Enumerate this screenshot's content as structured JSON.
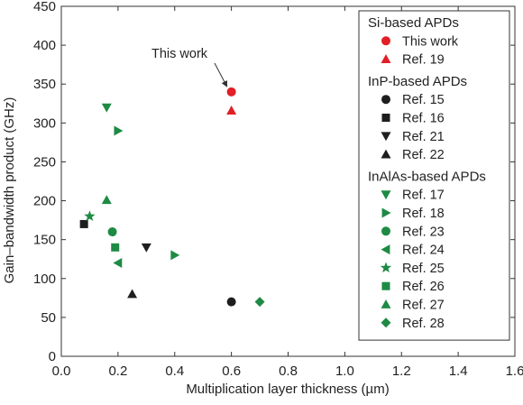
{
  "chart_data": {
    "type": "scatter",
    "xlabel": "Multiplication layer thickness (µm)",
    "ylabel": "Gain–bandwidth product (GHz)",
    "xlim": [
      0.0,
      1.6
    ],
    "ylim": [
      0,
      450
    ],
    "x_ticks": [
      "0.0",
      "0.2",
      "0.4",
      "0.6",
      "0.8",
      "1.0",
      "1.2",
      "1.4",
      "1.6"
    ],
    "y_ticks": [
      "0",
      "50",
      "100",
      "150",
      "200",
      "250",
      "300",
      "350",
      "400",
      "450"
    ],
    "grid": false,
    "legend_position": "top-right",
    "annotation": {
      "text": "This work",
      "x": 0.6,
      "y": 340
    },
    "groups": [
      {
        "title": "Si-based APDs",
        "color": "#e21f26",
        "series": [
          {
            "name": "This work",
            "marker": "circle",
            "points": [
              [
                0.6,
                340
              ]
            ]
          },
          {
            "name": "Ref. 19",
            "marker": "triangle-up",
            "points": [
              [
                0.6,
                316
              ]
            ]
          }
        ]
      },
      {
        "title": "InP-based APDs",
        "color": "#1e1e1e",
        "series": [
          {
            "name": "Ref. 15",
            "marker": "circle",
            "points": [
              [
                0.6,
                70
              ]
            ]
          },
          {
            "name": "Ref. 16",
            "marker": "square",
            "points": [
              [
                0.08,
                170
              ]
            ]
          },
          {
            "name": "Ref. 21",
            "marker": "triangle-down",
            "points": [
              [
                0.3,
                140
              ]
            ]
          },
          {
            "name": "Ref. 22",
            "marker": "triangle-up",
            "points": [
              [
                0.25,
                80
              ]
            ]
          }
        ]
      },
      {
        "title": "InAlAs-based APDs",
        "color": "#1e8a44",
        "series": [
          {
            "name": "Ref. 17",
            "marker": "triangle-down",
            "points": [
              [
                0.16,
                320
              ]
            ]
          },
          {
            "name": "Ref. 18",
            "marker": "triangle-right",
            "points": [
              [
                0.2,
                290
              ],
              [
                0.4,
                130
              ]
            ]
          },
          {
            "name": "Ref. 23",
            "marker": "circle",
            "points": [
              [
                0.18,
                160
              ]
            ]
          },
          {
            "name": "Ref. 24",
            "marker": "triangle-left",
            "points": [
              [
                0.2,
                120
              ]
            ]
          },
          {
            "name": "Ref. 25",
            "marker": "star",
            "points": [
              [
                0.1,
                180
              ]
            ]
          },
          {
            "name": "Ref. 26",
            "marker": "square",
            "points": [
              [
                0.19,
                140
              ]
            ]
          },
          {
            "name": "Ref. 27",
            "marker": "triangle-up",
            "points": [
              [
                0.16,
                201
              ]
            ]
          },
          {
            "name": "Ref. 28",
            "marker": "diamond",
            "points": [
              [
                0.7,
                70
              ]
            ]
          }
        ]
      }
    ]
  }
}
